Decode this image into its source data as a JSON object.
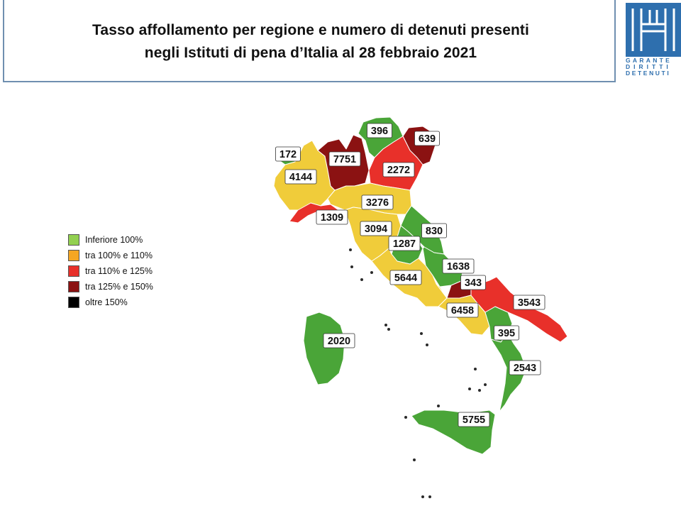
{
  "header": {
    "title_line1": "Tasso affollamento per regione e numero di detenuti presenti",
    "title_line2": "negli Istituti di pena d’Italia al 28 febbraio 2021"
  },
  "logo": {
    "line1": "GARANTE",
    "line2": "DIRITTI",
    "line3": "DETENUTI",
    "color": "#2e6fae"
  },
  "legend": [
    {
      "label": "Inferiore 100%",
      "color": "#92d050"
    },
    {
      "label": "tra 100% e 110%",
      "color": "#f5a623"
    },
    {
      "label": "tra 110% e 125%",
      "color": "#e8302a"
    },
    {
      "label": "tra 125% e 150%",
      "color": "#8b1212"
    },
    {
      "label": "oltre 150%",
      "color": "#000000"
    }
  ],
  "map_colors": {
    "green": "#4aa538",
    "yellow": "#f0cc3a",
    "red": "#e8302a",
    "darkred": "#8b1212"
  },
  "regions": [
    {
      "name": "Valle d'Aosta",
      "detenuti": "172",
      "category": "green"
    },
    {
      "name": "Piemonte",
      "detenuti": "4144",
      "category": "yellow"
    },
    {
      "name": "Lombardia",
      "detenuti": "7751",
      "category": "darkred"
    },
    {
      "name": "Trentino-Alto Adige",
      "detenuti": "396",
      "category": "green"
    },
    {
      "name": "Friuli-Venezia Giulia",
      "detenuti": "639",
      "category": "darkred"
    },
    {
      "name": "Veneto",
      "detenuti": "2272",
      "category": "red"
    },
    {
      "name": "Liguria",
      "detenuti": "1309",
      "category": "red"
    },
    {
      "name": "Emilia-Romagna",
      "detenuti": "3276",
      "category": "yellow"
    },
    {
      "name": "Toscana",
      "detenuti": "3094",
      "category": "yellow"
    },
    {
      "name": "Marche",
      "detenuti": "830",
      "category": "green"
    },
    {
      "name": "Umbria",
      "detenuti": "1287",
      "category": "green"
    },
    {
      "name": "Lazio",
      "detenuti": "5644",
      "category": "yellow"
    },
    {
      "name": "Abruzzo",
      "detenuti": "1638",
      "category": "green"
    },
    {
      "name": "Molise",
      "detenuti": "343",
      "category": "darkred"
    },
    {
      "name": "Campania",
      "detenuti": "6458",
      "category": "yellow"
    },
    {
      "name": "Puglia",
      "detenuti": "3543",
      "category": "red"
    },
    {
      "name": "Basilicata",
      "detenuti": "395",
      "category": "green"
    },
    {
      "name": "Calabria",
      "detenuti": "2543",
      "category": "green"
    },
    {
      "name": "Sicilia",
      "detenuti": "5755",
      "category": "green"
    },
    {
      "name": "Sardegna",
      "detenuti": "2020",
      "category": "green"
    }
  ]
}
